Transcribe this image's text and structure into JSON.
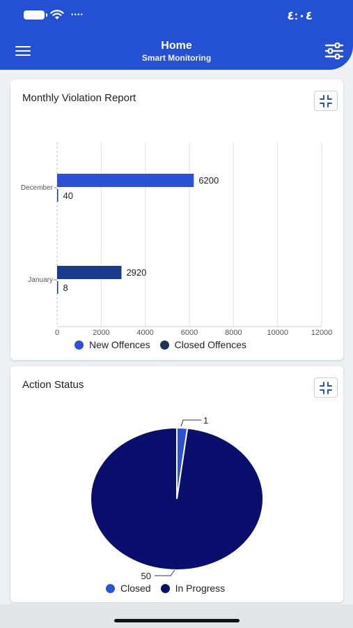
{
  "status_bar": {
    "time": "٤:٠٤"
  },
  "header": {
    "title": "Home",
    "subtitle": "Smart Monitoring",
    "menu_icon": "hamburger-menu-icon",
    "filter_icon": "sliders-icon"
  },
  "violation_card": {
    "title": "Monthly Violation Report",
    "collapse_icon": "collapse-icon",
    "chart_data": {
      "type": "bar",
      "orientation": "horizontal",
      "categories": [
        "December",
        "January"
      ],
      "series": [
        {
          "name": "New Offences",
          "values": [
            6200,
            2920
          ],
          "color": "#2a51d6"
        },
        {
          "name": "Closed Offences",
          "values": [
            40,
            8
          ],
          "color": "#1e3a8a"
        }
      ],
      "data_labels": [
        [
          "6200",
          "2920"
        ],
        [
          "40",
          "8"
        ]
      ],
      "xlim": [
        0,
        12000
      ],
      "xticks": [
        "0",
        "2000",
        "4000",
        "6000",
        "8000",
        "10000",
        "12000"
      ],
      "bar_colors": [
        [
          "#2a51d6",
          "#1a3a8e"
        ],
        [
          "#1a3a8e",
          "#1a3a8e"
        ]
      ],
      "grid": true,
      "legend_position": "bottom"
    }
  },
  "action_card": {
    "title": "Action Status",
    "collapse_icon": "collapse-icon",
    "chart_data": {
      "type": "pie",
      "slices": [
        {
          "name": "Closed",
          "value": 1,
          "label": "1",
          "color": "#2a51d6"
        },
        {
          "name": "In Progress",
          "value": 50,
          "label": "50",
          "color": "#0a0f6e"
        }
      ],
      "legend_position": "bottom"
    }
  }
}
